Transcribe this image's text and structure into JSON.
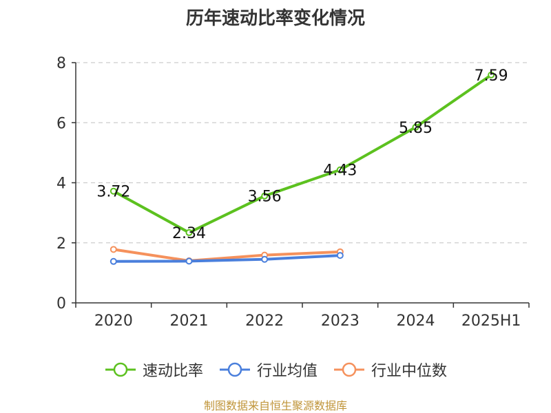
{
  "title": "历年速动比率变化情况",
  "source_note": "制图数据来自恒生聚源数据库",
  "chart_data": {
    "type": "line",
    "categories": [
      "2020",
      "2021",
      "2022",
      "2023",
      "2024",
      "2025H1"
    ],
    "ylim": [
      0,
      8
    ],
    "yticks": [
      "0",
      "2",
      "4",
      "6",
      "8"
    ],
    "grid": true,
    "legend_position": "bottom",
    "series": [
      {
        "name": "速动比率",
        "color": "#5cc11f",
        "values": [
          3.72,
          2.34,
          3.56,
          4.43,
          5.85,
          7.59
        ],
        "labels": [
          "3.72",
          "2.34",
          "3.56",
          "4.43",
          "5.85",
          "7.59"
        ]
      },
      {
        "name": "行业均值",
        "color": "#4a7fdc",
        "values": [
          1.38,
          1.39,
          1.45,
          1.58,
          null,
          null
        ]
      },
      {
        "name": "行业中位数",
        "color": "#f5915c",
        "values": [
          1.78,
          1.4,
          1.59,
          1.7,
          null,
          null
        ]
      }
    ]
  }
}
